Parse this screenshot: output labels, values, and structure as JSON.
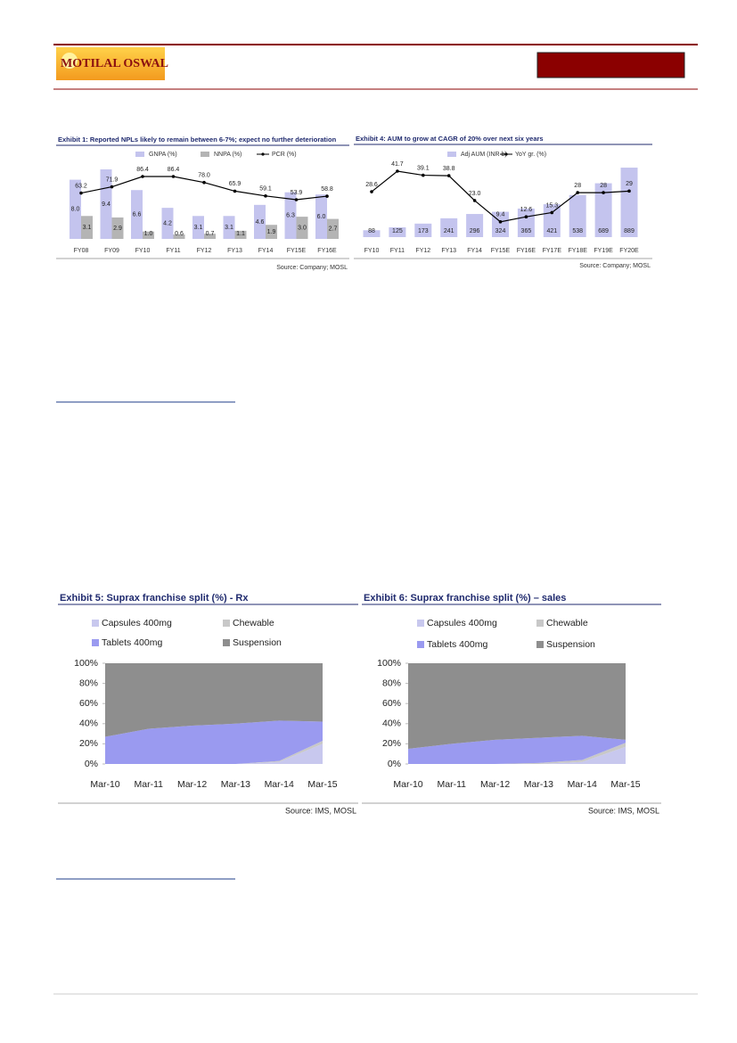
{
  "header": {
    "logo": "MOTILAL OSWAL"
  },
  "chart_data": [
    {
      "type": "combo",
      "title": "Exhibit 1: Reported NPLs likely to remain between 6-7%; expect no further deterioration",
      "source": "Source: Company; MOSL",
      "categories": [
        "FY08",
        "FY09",
        "FY10",
        "FY11",
        "FY12",
        "FY13",
        "FY14",
        "FY15E",
        "FY16E"
      ],
      "series": [
        {
          "name": "GNPA (%)",
          "kind": "bar",
          "color": "#c4c4ee",
          "values": [
            8.0,
            9.4,
            6.6,
            4.2,
            3.1,
            3.1,
            4.6,
            6.3,
            6.0
          ],
          "value_labels": [
            "8.0",
            "9.4",
            "6.6",
            "4.2",
            "3.1",
            "3.1",
            "4.6",
            "6.3",
            "6.0"
          ]
        },
        {
          "name": "NNPA (%)",
          "kind": "bar",
          "color": "#b4b4b4",
          "values": [
            3.1,
            2.9,
            1.0,
            0.6,
            0.7,
            1.1,
            1.9,
            3.0,
            2.7
          ],
          "value_labels": [
            "3.1",
            "2.9",
            "1.0",
            "0.6",
            "0.7",
            "1.1",
            "1.9",
            "3.0",
            "2.7"
          ]
        },
        {
          "name": "PCR (%)",
          "kind": "line",
          "color": "#000000",
          "values": [
            63.2,
            71.9,
            86.4,
            86.4,
            78.0,
            65.9,
            59.1,
            53.9,
            58.8
          ],
          "value_labels": [
            "63.2",
            "71.9",
            "86.4",
            "86.4",
            "78.0",
            "65.9",
            "59.1",
            "53.9",
            "58.8"
          ]
        }
      ]
    },
    {
      "type": "combo",
      "title": "Exhibit 4: AUM to grow at CAGR of 20% over next six years",
      "source": "Source: Company; MOSL",
      "categories": [
        "FY10",
        "FY11",
        "FY12",
        "FY13",
        "FY14",
        "FY15E",
        "FY16E",
        "FY17E",
        "FY18E",
        "FY19E",
        "FY20E"
      ],
      "series": [
        {
          "name": "Adj AUM (INR b)",
          "kind": "bar",
          "color": "#c4c4ee",
          "values": [
            88,
            125,
            173,
            241,
            296,
            324,
            365,
            421,
            538,
            689,
            889
          ]
        },
        {
          "name": "YoY gr. (%)",
          "kind": "line",
          "color": "#000000",
          "values": [
            28.6,
            41.7,
            39.1,
            38.8,
            23.0,
            9.4,
            12.6,
            15.3,
            28,
            28,
            29
          ],
          "value_labels": [
            "28.6",
            "41.7",
            "39.1",
            "38.8",
            "23.0",
            "9.4",
            "12.6",
            "15.3",
            "28",
            "28",
            "29"
          ]
        }
      ]
    },
    {
      "type": "area",
      "title": "Exhibit 5: Suprax franchise split (%) - Rx",
      "source": "Source: IMS, MOSL",
      "categories": [
        "Mar-10",
        "Mar-11",
        "Mar-12",
        "Mar-13",
        "Mar-14",
        "Mar-15"
      ],
      "ylim": [
        0,
        100
      ],
      "yticks": [
        {
          "value": 0,
          "label": "0%"
        },
        {
          "value": 20,
          "label": "20%"
        },
        {
          "value": 40,
          "label": "40%"
        },
        {
          "value": 60,
          "label": "60%"
        },
        {
          "value": 80,
          "label": "80%"
        },
        {
          "value": 100,
          "label": "100%"
        }
      ],
      "series": [
        {
          "name": "Capsules 400mg",
          "color": "#c8c8ee",
          "values": [
            0,
            0,
            0,
            0,
            2,
            20
          ]
        },
        {
          "name": "Chewable",
          "color": "#c8c8c8",
          "values": [
            0,
            0,
            0,
            0,
            1,
            3
          ]
        },
        {
          "name": "Tablets 400mg",
          "color": "#9a9af0",
          "values": [
            27,
            35,
            38,
            40,
            40,
            19
          ]
        },
        {
          "name": "Suspension",
          "color": "#8e8e8e",
          "values": [
            73,
            65,
            62,
            60,
            57,
            58
          ]
        }
      ]
    },
    {
      "type": "area",
      "title": "Exhibit 6: Suprax franchise split (%) – sales",
      "source": "Source: IMS, MOSL",
      "categories": [
        "Mar-10",
        "Mar-11",
        "Mar-12",
        "Mar-13",
        "Mar-14",
        "Mar-15"
      ],
      "ylim": [
        0,
        100
      ],
      "yticks": [
        {
          "value": 0,
          "label": "0%"
        },
        {
          "value": 20,
          "label": "20%"
        },
        {
          "value": 40,
          "label": "40%"
        },
        {
          "value": 60,
          "label": "60%"
        },
        {
          "value": 80,
          "label": "80%"
        },
        {
          "value": 100,
          "label": "100%"
        }
      ],
      "series": [
        {
          "name": "Capsules 400mg",
          "color": "#c8c8ee",
          "values": [
            0,
            0,
            0,
            0,
            2,
            17
          ]
        },
        {
          "name": "Chewable",
          "color": "#c8c8c8",
          "values": [
            0,
            0,
            0,
            1,
            2,
            4
          ]
        },
        {
          "name": "Tablets 400mg",
          "color": "#9a9af0",
          "values": [
            15,
            20,
            24,
            25,
            24,
            3
          ]
        },
        {
          "name": "Suspension",
          "color": "#8e8e8e",
          "values": [
            85,
            80,
            76,
            74,
            72,
            76
          ]
        }
      ]
    }
  ]
}
